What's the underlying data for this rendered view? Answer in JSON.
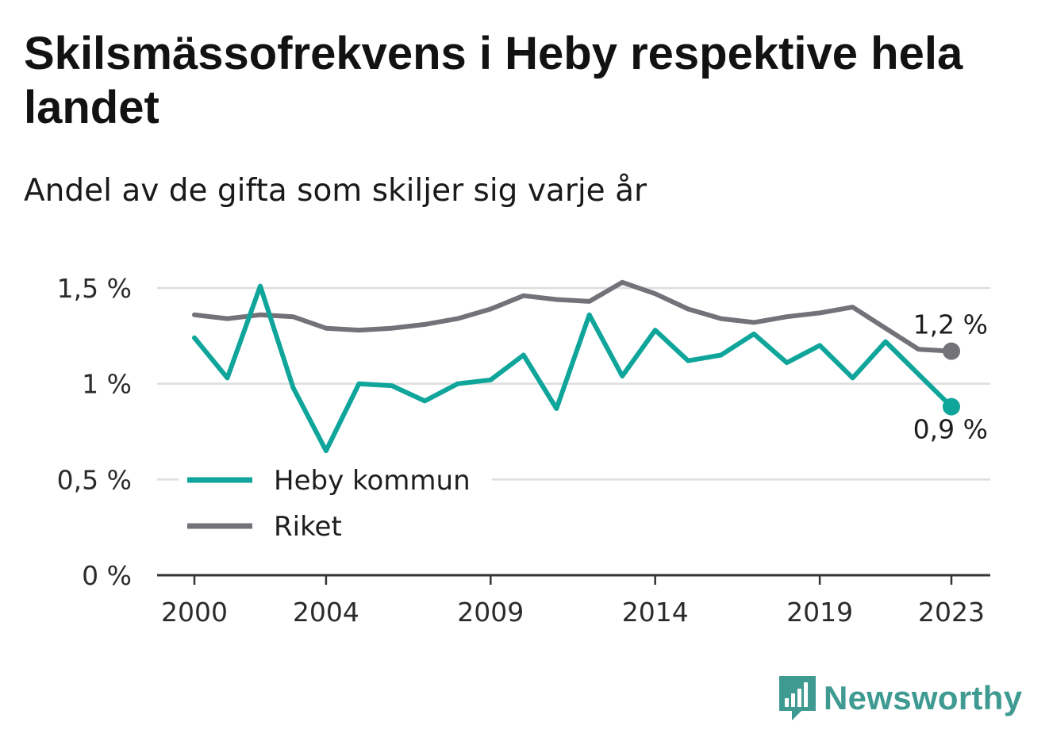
{
  "title": "Skilsmässofrekvens i Heby respektive hela landet",
  "subtitle": "Andel av de gifta som skiljer sig varje år",
  "brand": {
    "name": "Newsworthy",
    "color": "#3f9a91",
    "icon": "bar-chart-speech-bubble-icon"
  },
  "chart_data": {
    "type": "line",
    "title": "Skilsmässofrekvens i Heby respektive hela landet",
    "subtitle": "Andel av de gifta som skiljer sig varje år",
    "xlabel": "",
    "ylabel": "",
    "x": [
      2000,
      2001,
      2002,
      2003,
      2004,
      2005,
      2006,
      2007,
      2008,
      2009,
      2010,
      2011,
      2012,
      2013,
      2014,
      2015,
      2016,
      2017,
      2018,
      2019,
      2020,
      2021,
      2022,
      2023
    ],
    "x_ticks": [
      "2000",
      "2004",
      "2009",
      "2014",
      "2019",
      "2023"
    ],
    "ylim": [
      0,
      1.5
    ],
    "y_ticks": [
      0,
      0.5,
      1,
      1.5
    ],
    "y_tick_labels": [
      "0 %",
      "0,5 %",
      "1 %",
      "1,5 %"
    ],
    "grid": true,
    "legend_position": "bottom-left",
    "series": [
      {
        "name": "Heby kommun",
        "color": "#0fa59a",
        "values": [
          1.24,
          1.03,
          1.51,
          0.98,
          0.65,
          1.0,
          0.99,
          0.91,
          1.0,
          1.02,
          1.15,
          0.87,
          1.36,
          1.04,
          1.28,
          1.12,
          1.15,
          1.26,
          1.11,
          1.2,
          1.03,
          1.22,
          1.05,
          0.88
        ],
        "end_label": "0,9 %"
      },
      {
        "name": "Riket",
        "color": "#737279",
        "values": [
          1.36,
          1.34,
          1.36,
          1.35,
          1.29,
          1.28,
          1.29,
          1.31,
          1.34,
          1.39,
          1.46,
          1.44,
          1.43,
          1.53,
          1.47,
          1.39,
          1.34,
          1.32,
          1.35,
          1.37,
          1.4,
          1.29,
          1.18,
          1.17
        ],
        "end_label": "1,2 %"
      }
    ]
  }
}
